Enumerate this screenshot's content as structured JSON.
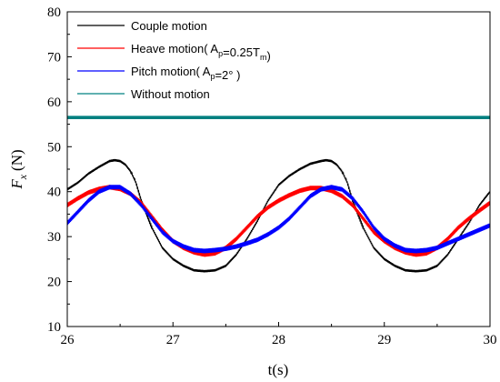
{
  "chart_data": {
    "type": "line",
    "title": "",
    "xlabel": "t(s)",
    "ylabel": "F_x (N)",
    "ylabel_symbol": "F",
    "ylabel_subscript": "x",
    "ylabel_unit": "(N)",
    "xlim": [
      26,
      30
    ],
    "ylim": [
      10,
      80
    ],
    "x_ticks": [
      26,
      27,
      28,
      29,
      30
    ],
    "x_tick_labels": [
      "26",
      "27",
      "28",
      "29",
      "30"
    ],
    "y_ticks": [
      10,
      20,
      30,
      40,
      50,
      60,
      70,
      80
    ],
    "y_tick_labels": [
      "10",
      "20",
      "30",
      "40",
      "50",
      "60",
      "70",
      "80"
    ],
    "grid": false,
    "legend_position": "top-left",
    "legend": [
      {
        "text": "Couple motion",
        "parts": [
          {
            "t": "Couple motion"
          }
        ]
      },
      {
        "text": "Heave motion(  Ap=0.25Tm)",
        "parts": [
          {
            "t": "Heave motion(  A"
          },
          {
            "t": "p",
            "sub": true
          },
          {
            "t": "=0.25T"
          },
          {
            "t": "m",
            "sub": true
          },
          {
            "t": ")"
          }
        ]
      },
      {
        "text": "Pitch motion(  Ap=2°  )",
        "parts": [
          {
            "t": "Pitch motion(  A"
          },
          {
            "t": "p",
            "sub": true
          },
          {
            "t": "=2°  )"
          }
        ]
      },
      {
        "text": "Without motion",
        "parts": [
          {
            "t": "Without motion"
          }
        ]
      }
    ],
    "series": [
      {
        "name": "Couple motion",
        "color": "#000000",
        "ripple": 0.5,
        "x": [
          26.0,
          26.1,
          26.2,
          26.3,
          26.4,
          26.45,
          26.5,
          26.55,
          26.6,
          26.65,
          26.7,
          26.8,
          26.9,
          27.0,
          27.1,
          27.2,
          27.3,
          27.4,
          27.5,
          27.6,
          27.7,
          27.8,
          27.9,
          28.0,
          28.1,
          28.2,
          28.3,
          28.4,
          28.45,
          28.5,
          28.55,
          28.6,
          28.65,
          28.7,
          28.8,
          28.9,
          29.0,
          29.1,
          29.2,
          29.3,
          29.4,
          29.5,
          29.6,
          29.7,
          29.8,
          29.9,
          30.0
        ],
        "values": [
          40.5,
          42.0,
          44.0,
          45.5,
          46.8,
          47.0,
          46.8,
          46.0,
          44.5,
          42.0,
          38.0,
          32.0,
          27.5,
          25.0,
          23.5,
          22.5,
          22.3,
          22.5,
          23.5,
          26.0,
          29.5,
          33.5,
          38.0,
          41.5,
          43.5,
          45.0,
          46.2,
          46.8,
          47.0,
          46.8,
          46.0,
          44.5,
          42.0,
          38.0,
          32.0,
          27.5,
          25.0,
          23.5,
          22.5,
          22.3,
          22.5,
          23.5,
          26.0,
          29.5,
          33.0,
          37.0,
          40.0
        ]
      },
      {
        "name": "Heave motion(  Ap=0.25Tm)",
        "color": "#ff0000",
        "ripple": 1.0,
        "x": [
          26.0,
          26.1,
          26.2,
          26.3,
          26.4,
          26.5,
          26.6,
          26.7,
          26.8,
          26.9,
          27.0,
          27.1,
          27.2,
          27.3,
          27.4,
          27.5,
          27.6,
          27.7,
          27.8,
          27.9,
          28.0,
          28.1,
          28.2,
          28.3,
          28.4,
          28.5,
          28.6,
          28.7,
          28.8,
          28.9,
          29.0,
          29.1,
          29.2,
          29.3,
          29.4,
          29.5,
          29.6,
          29.7,
          29.8,
          29.9,
          30.0
        ],
        "values": [
          37.0,
          38.5,
          39.8,
          40.6,
          41.0,
          40.6,
          39.5,
          37.5,
          34.5,
          31.5,
          29.0,
          27.5,
          26.5,
          26.0,
          26.3,
          27.5,
          29.5,
          32.0,
          34.5,
          36.5,
          38.0,
          39.2,
          40.2,
          40.8,
          40.8,
          40.2,
          39.0,
          37.0,
          34.0,
          31.0,
          29.0,
          27.5,
          26.5,
          26.0,
          26.3,
          27.5,
          29.5,
          32.0,
          34.0,
          35.8,
          37.5
        ]
      },
      {
        "name": "Pitch motion(  Ap=2°  )",
        "color": "#0000ff",
        "ripple": 1.0,
        "x": [
          26.0,
          26.1,
          26.2,
          26.3,
          26.4,
          26.5,
          26.6,
          26.7,
          26.8,
          26.9,
          27.0,
          27.1,
          27.2,
          27.3,
          27.4,
          27.5,
          27.6,
          27.7,
          27.8,
          27.9,
          28.0,
          28.1,
          28.2,
          28.3,
          28.4,
          28.5,
          28.6,
          28.7,
          28.8,
          28.9,
          29.0,
          29.1,
          29.2,
          29.3,
          29.4,
          29.5,
          29.6,
          29.7,
          29.8,
          29.9,
          30.0
        ],
        "values": [
          33.0,
          35.5,
          38.0,
          40.0,
          41.0,
          41.0,
          39.5,
          37.0,
          34.0,
          31.0,
          29.0,
          27.8,
          27.0,
          26.8,
          27.0,
          27.3,
          27.8,
          28.5,
          29.3,
          30.5,
          32.0,
          34.0,
          36.5,
          39.0,
          40.5,
          41.0,
          40.5,
          38.5,
          35.5,
          32.0,
          29.5,
          28.0,
          27.0,
          26.8,
          27.0,
          27.5,
          28.5,
          29.5,
          30.5,
          31.5,
          32.5
        ]
      },
      {
        "name": "Without motion",
        "color": "#008080",
        "ripple": 0.7,
        "x": [
          26.0,
          27.0,
          28.0,
          29.0,
          30.0
        ],
        "values": [
          56.5,
          56.5,
          56.5,
          56.5,
          56.5
        ]
      }
    ]
  }
}
